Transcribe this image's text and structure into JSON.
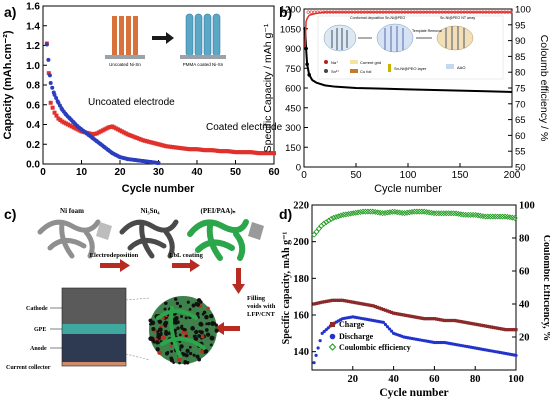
{
  "panel_labels": {
    "a": "a)",
    "b": "b)",
    "c": "c)",
    "d": "d)"
  },
  "chart_data": [
    {
      "panel": "a",
      "type": "scatter",
      "xlabel": "Cycle number",
      "ylabel": "Capacity (mAh.cm⁻²)",
      "xlim": [
        0,
        60
      ],
      "ylim": [
        0.0,
        1.6
      ],
      "xticks": [
        "0",
        "10",
        "20",
        "30",
        "40",
        "50",
        "60"
      ],
      "yticks": [
        "0.0",
        "0.2",
        "0.4",
        "0.6",
        "0.8",
        "1.0",
        "1.2",
        "1.4",
        "1.6"
      ],
      "annotations": [
        "Uncoated electrode",
        "Coated electrode"
      ],
      "inset_labels": [
        "Uncoated Ni-Sn",
        "PMMA coated Ni-Sn"
      ],
      "colors": {
        "uncoated": "#2a3fbf",
        "coated": "#e0312c"
      },
      "series": [
        {
          "key": "uncoated",
          "x": [
            1,
            2,
            3,
            4,
            5,
            6,
            7,
            8,
            9,
            10,
            11,
            12,
            13,
            14,
            15,
            16,
            17,
            18,
            19,
            20,
            22,
            24,
            26,
            28,
            30
          ],
          "y": [
            1.21,
            0.82,
            0.7,
            0.62,
            0.55,
            0.5,
            0.46,
            0.42,
            0.38,
            0.35,
            0.32,
            0.29,
            0.26,
            0.23,
            0.2,
            0.17,
            0.14,
            0.11,
            0.09,
            0.07,
            0.05,
            0.04,
            0.03,
            0.02,
            0.01
          ]
        },
        {
          "key": "coated",
          "x": [
            1,
            2,
            3,
            4,
            5,
            6,
            7,
            8,
            9,
            10,
            11,
            12,
            13,
            14,
            15,
            16,
            17,
            18,
            19,
            20,
            22,
            24,
            26,
            28,
            30,
            32,
            34,
            36,
            38,
            40,
            42,
            44,
            46,
            48,
            50,
            52,
            54,
            56,
            58,
            60
          ],
          "y": [
            1.22,
            0.62,
            0.52,
            0.46,
            0.43,
            0.41,
            0.39,
            0.37,
            0.35,
            0.33,
            0.32,
            0.31,
            0.3,
            0.31,
            0.33,
            0.35,
            0.37,
            0.38,
            0.36,
            0.34,
            0.3,
            0.27,
            0.24,
            0.22,
            0.2,
            0.18,
            0.17,
            0.16,
            0.15,
            0.15,
            0.14,
            0.14,
            0.13,
            0.13,
            0.12,
            0.12,
            0.12,
            0.11,
            0.11,
            0.11
          ]
        }
      ]
    },
    {
      "panel": "b",
      "type": "line",
      "xlabel": "Cycle number",
      "ylabel": "Specific Capacity / mAh g⁻¹",
      "ylabel_right": "Coloumb efficiency / %",
      "xlim": [
        0,
        200
      ],
      "ylim": [
        0,
        1200
      ],
      "ylim_right": [
        50,
        100
      ],
      "xticks": [
        "0",
        "50",
        "100",
        "150",
        "200"
      ],
      "yticks": [
        "0",
        "150",
        "300",
        "450",
        "600",
        "750",
        "900",
        "1050",
        "1200"
      ],
      "yticks_right": [
        "50",
        "55",
        "60",
        "65",
        "70",
        "75",
        "80",
        "85",
        "90",
        "95",
        "100"
      ],
      "inset_labels": [
        "Na⁺",
        "Sn²⁺",
        "Cu foil",
        "Sn-Ni@PEO layer",
        "AAO",
        "Conformal deposition Sn-Ni@PEO",
        "Template Removal",
        "Sn-Ni@PEO NT array",
        "Current grid"
      ],
      "colors": {
        "capacity": "#000000",
        "efficiency": "#e0312c"
      },
      "series": [
        {
          "key": "capacity",
          "x": [
            1,
            2,
            3,
            5,
            8,
            12,
            20,
            30,
            50,
            75,
            100,
            125,
            150,
            175,
            200
          ],
          "y": [
            1050,
            900,
            780,
            700,
            660,
            640,
            620,
            610,
            600,
            595,
            590,
            585,
            580,
            575,
            570
          ]
        },
        {
          "key": "efficiency",
          "x": [
            1,
            2,
            3,
            5,
            10,
            20,
            50,
            100,
            150,
            200
          ],
          "y": [
            88,
            96,
            97,
            98,
            98.5,
            99,
            99,
            99,
            99,
            99
          ]
        }
      ]
    },
    {
      "panel": "d",
      "type": "scatter",
      "xlabel": "Cycle number",
      "ylabel": "Specific capacity, mAh g⁻¹",
      "ylabel_right": "Coulombic Efficiency, %",
      "xlim": [
        0,
        100
      ],
      "ylim": [
        130,
        220
      ],
      "ylim_right": [
        0,
        100
      ],
      "xticks": [
        "20",
        "40",
        "60",
        "80",
        "100"
      ],
      "yticks": [
        "140",
        "160",
        "180",
        "200",
        "220"
      ],
      "yticks_right": [
        "20",
        "40",
        "60",
        "80",
        "100"
      ],
      "legend": [
        "Charge",
        "Discharge",
        "Coulombic efficiency"
      ],
      "colors": {
        "charge": "#8b2a2a",
        "discharge": "#2233cc",
        "efficiency": "#1a9a1a"
      },
      "series": [
        {
          "key": "charge",
          "x": [
            1,
            5,
            10,
            15,
            20,
            25,
            30,
            35,
            40,
            45,
            50,
            55,
            60,
            65,
            70,
            75,
            80,
            85,
            90,
            95,
            100
          ],
          "y": [
            166,
            167,
            168,
            168,
            167,
            166,
            165,
            163,
            161,
            160,
            159,
            158,
            158,
            157,
            157,
            156,
            155,
            154,
            153,
            152,
            152
          ]
        },
        {
          "key": "discharge",
          "x": [
            1,
            5,
            10,
            15,
            20,
            25,
            30,
            35,
            40,
            45,
            50,
            55,
            60,
            65,
            70,
            75,
            80,
            85,
            90,
            95,
            100
          ],
          "y": [
            134,
            150,
            155,
            158,
            159,
            158,
            157,
            156,
            150,
            148,
            147,
            146,
            145,
            145,
            144,
            143,
            142,
            141,
            140,
            139,
            138
          ]
        },
        {
          "key": "efficiency",
          "x": [
            1,
            5,
            10,
            15,
            20,
            25,
            30,
            35,
            40,
            45,
            50,
            55,
            60,
            65,
            70,
            75,
            80,
            85,
            90,
            95,
            100
          ],
          "y": [
            82,
            88,
            92,
            94,
            95,
            96,
            96,
            95,
            96,
            95,
            96,
            96,
            95,
            95,
            95,
            94,
            94,
            93,
            93,
            93,
            92
          ]
        }
      ]
    }
  ],
  "panel_c": {
    "labels": [
      "Ni foam",
      "Ni₃Sn₄",
      "(PEI/PAA)ₙ",
      "Electrodeposition",
      "LbL coating",
      "Cathode",
      "GPE",
      "Anode",
      "Current collector",
      "Filling voids with LFP/CNT"
    ],
    "colors": {
      "arrow": "#b82b21",
      "coated": "#2ba64a",
      "foam": "#8a8a8a"
    }
  }
}
